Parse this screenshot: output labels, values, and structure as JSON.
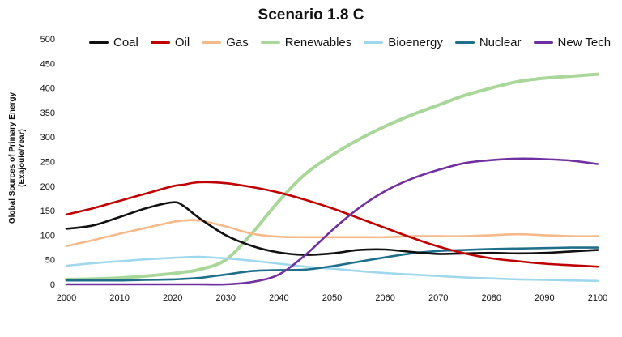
{
  "chart_data": {
    "type": "line",
    "title": "Scenario 1.8 C",
    "ylabel": [
      "Global Sources of Primary Energy",
      "(Exajoule/Year)"
    ],
    "xlabel": "",
    "xlim": [
      2000,
      2100
    ],
    "ylim": [
      0,
      500
    ],
    "x_ticks": [
      2000,
      2010,
      2020,
      2030,
      2040,
      2050,
      2060,
      2070,
      2080,
      2090,
      2100
    ],
    "y_ticks": [
      0,
      50,
      100,
      150,
      200,
      250,
      300,
      350,
      400,
      450,
      500
    ],
    "grid": false,
    "legend_position": "top",
    "x": [
      2000,
      2005,
      2010,
      2015,
      2020,
      2022,
      2025,
      2030,
      2035,
      2040,
      2045,
      2050,
      2055,
      2060,
      2065,
      2070,
      2075,
      2080,
      2085,
      2090,
      2095,
      2100
    ],
    "series": [
      {
        "name": "Coal",
        "color": "#111111",
        "values": [
          113,
          120,
          137,
          155,
          167,
          160,
          135,
          100,
          78,
          65,
          60,
          63,
          70,
          71,
          66,
          62,
          63,
          64,
          63,
          64,
          67,
          70
        ]
      },
      {
        "name": "Oil",
        "color": "#c00000",
        "values": [
          142,
          155,
          170,
          185,
          200,
          203,
          208,
          206,
          198,
          187,
          172,
          155,
          135,
          115,
          95,
          77,
          63,
          53,
          47,
          42,
          39,
          36
        ]
      },
      {
        "name": "Gas",
        "color": "#f5b98a",
        "values": [
          78,
          90,
          103,
          115,
          127,
          130,
          130,
          118,
          103,
          97,
          96,
          96,
          96,
          96,
          98,
          98,
          98,
          100,
          102,
          100,
          98,
          98
        ]
      },
      {
        "name": "Renewables",
        "color": "#a9d79a",
        "values": [
          10,
          11,
          13,
          17,
          22,
          25,
          30,
          50,
          105,
          170,
          225,
          263,
          295,
          322,
          345,
          365,
          385,
          400,
          413,
          420,
          424,
          428
        ]
      },
      {
        "name": "Bioenergy",
        "color": "#9fd8ec",
        "values": [
          38,
          43,
          47,
          51,
          54,
          55,
          56,
          53,
          48,
          42,
          36,
          32,
          27,
          23,
          20,
          17,
          14,
          12,
          10,
          9,
          8,
          7
        ]
      },
      {
        "name": "Nuclear",
        "color": "#1f6f8b",
        "values": [
          8,
          8,
          8,
          9,
          10,
          11,
          13,
          20,
          27,
          29,
          30,
          37,
          46,
          55,
          63,
          68,
          70,
          72,
          73,
          74,
          75,
          75
        ]
      },
      {
        "name": "New Tech",
        "color": "#7030a0",
        "values": [
          0,
          0,
          0,
          0,
          0,
          0,
          0,
          0,
          5,
          20,
          60,
          110,
          155,
          190,
          215,
          233,
          247,
          253,
          256,
          255,
          252,
          245
        ]
      }
    ]
  }
}
